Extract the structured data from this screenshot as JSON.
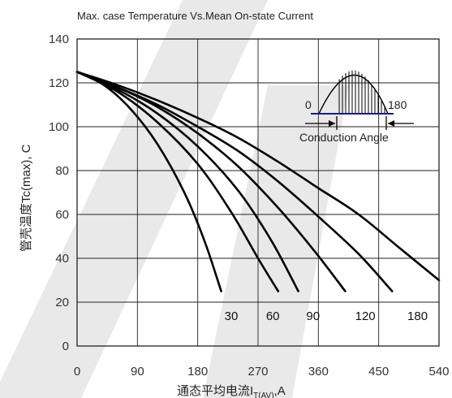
{
  "chart_data": {
    "type": "line",
    "title": "Max. case Temperature Vs.Mean On-state Current",
    "xlabel_main": "通态平均电流I",
    "xlabel_sub": "T(AV)",
    "xlabel_tail": ",A",
    "ylabel": "管壳温度Tc(max), C",
    "xlim": [
      0,
      540
    ],
    "ylim": [
      0,
      140
    ],
    "xticks": [
      0,
      90,
      180,
      270,
      360,
      450,
      540
    ],
    "yticks": [
      0,
      20,
      40,
      60,
      80,
      100,
      120,
      140
    ],
    "grid": true,
    "series": [
      {
        "name": "30",
        "color": "#666666",
        "x": [
          0,
          40,
          80,
          120,
          160,
          190,
          215
        ],
        "y": [
          125,
          119,
          108,
          92,
          70,
          48,
          25
        ]
      },
      {
        "name": "60",
        "color": "#666666",
        "x": [
          0,
          60,
          120,
          180,
          230,
          270,
          300
        ],
        "y": [
          125,
          116,
          102,
          83,
          61,
          40,
          25
        ]
      },
      {
        "name": "90",
        "color": "#000000",
        "x": [
          0,
          60,
          120,
          180,
          240,
          290,
          330
        ],
        "y": [
          125,
          117,
          106,
          91,
          71,
          48,
          25
        ]
      },
      {
        "name": "120",
        "color": "#000000",
        "x": [
          0,
          60,
          120,
          180,
          240,
          300,
          355,
          400
        ],
        "y": [
          125,
          118,
          109,
          97,
          82,
          63,
          43,
          25
        ]
      },
      {
        "name": "180",
        "color": "#000000",
        "x": [
          0,
          60,
          120,
          180,
          240,
          300,
          360,
          420,
          470
        ],
        "y": [
          125,
          118,
          110,
          100,
          89,
          75,
          59,
          42,
          25
        ]
      },
      {
        "name": "",
        "color": "#000000",
        "x": [
          0,
          60,
          120,
          180,
          240,
          300,
          360,
          420,
          480,
          540
        ],
        "y": [
          125,
          119,
          112,
          104,
          95,
          84,
          72,
          60,
          45,
          30
        ]
      }
    ],
    "series_labels": [
      {
        "text": "30",
        "x": 230,
        "y": 14
      },
      {
        "text": "60",
        "x": 292,
        "y": 14
      },
      {
        "text": "90",
        "x": 352,
        "y": 14
      },
      {
        "text": "120",
        "x": 430,
        "y": 14
      },
      {
        "text": "180",
        "x": 508,
        "y": 14
      }
    ],
    "inset": {
      "label_start": "0",
      "label_end": "180",
      "caption": "Conduction Angle"
    }
  }
}
